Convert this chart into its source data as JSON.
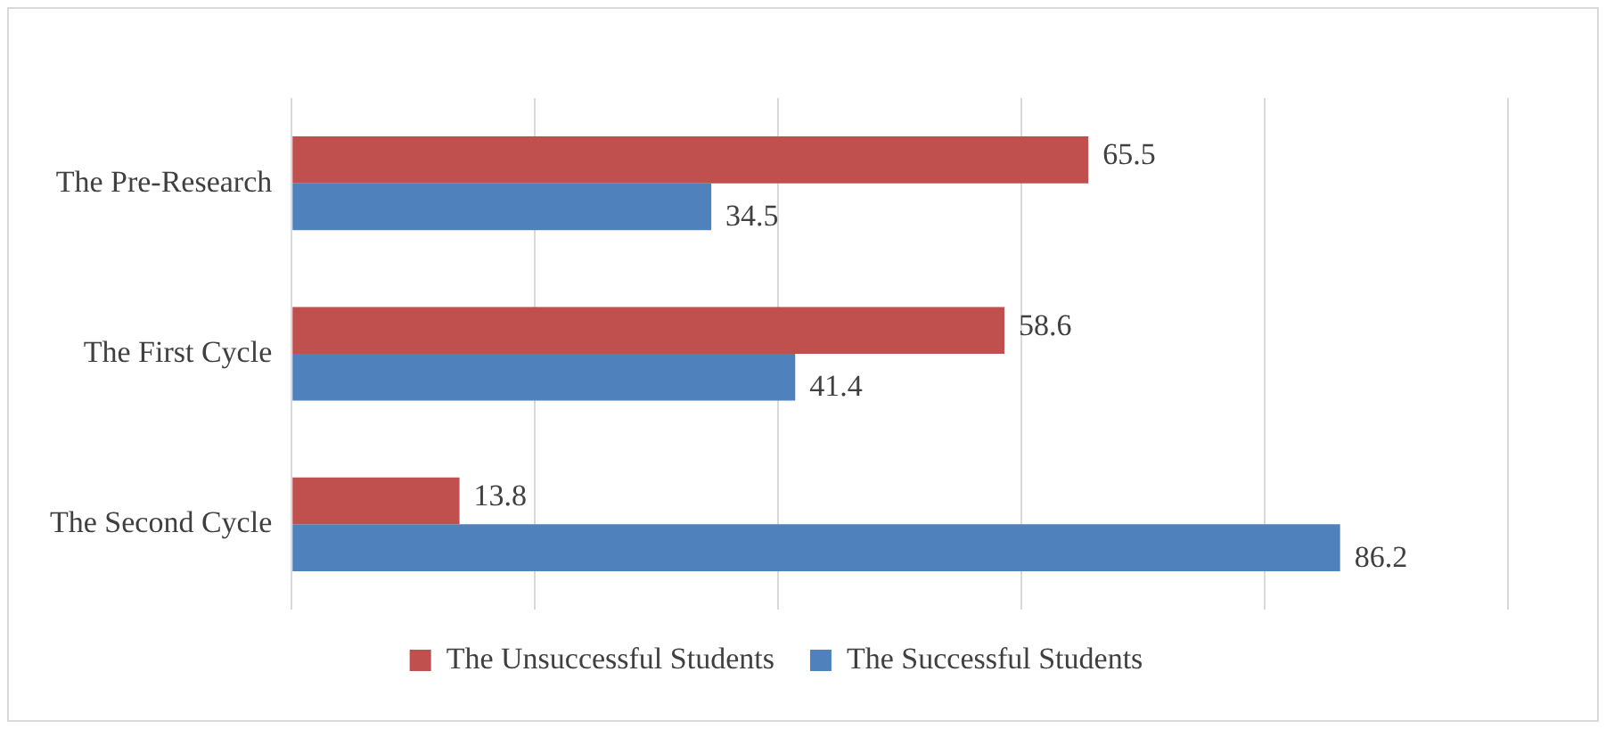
{
  "chart_data": {
    "type": "bar",
    "orientation": "horizontal",
    "categories": [
      "The Pre-Research",
      "The First Cycle",
      "The Second Cycle"
    ],
    "series": [
      {
        "name": "The Unsuccessful Students",
        "color": "#c0504d",
        "values": [
          65.5,
          58.6,
          13.8
        ]
      },
      {
        "name": "The Successful Students",
        "color": "#4f81bd",
        "values": [
          34.5,
          41.4,
          86.2
        ]
      }
    ],
    "xlim": [
      0,
      100
    ],
    "xticks": [
      {
        "value": 0,
        "label": null
      },
      {
        "value": 20,
        "label": null
      },
      {
        "value": 40,
        "label": null
      },
      {
        "value": 60,
        "label": null
      },
      {
        "value": 80,
        "label": null
      },
      {
        "value": 100,
        "label": null
      }
    ],
    "tick_labels": "y",
    "grid": "x",
    "legend": "bottom",
    "data_labels": true
  }
}
